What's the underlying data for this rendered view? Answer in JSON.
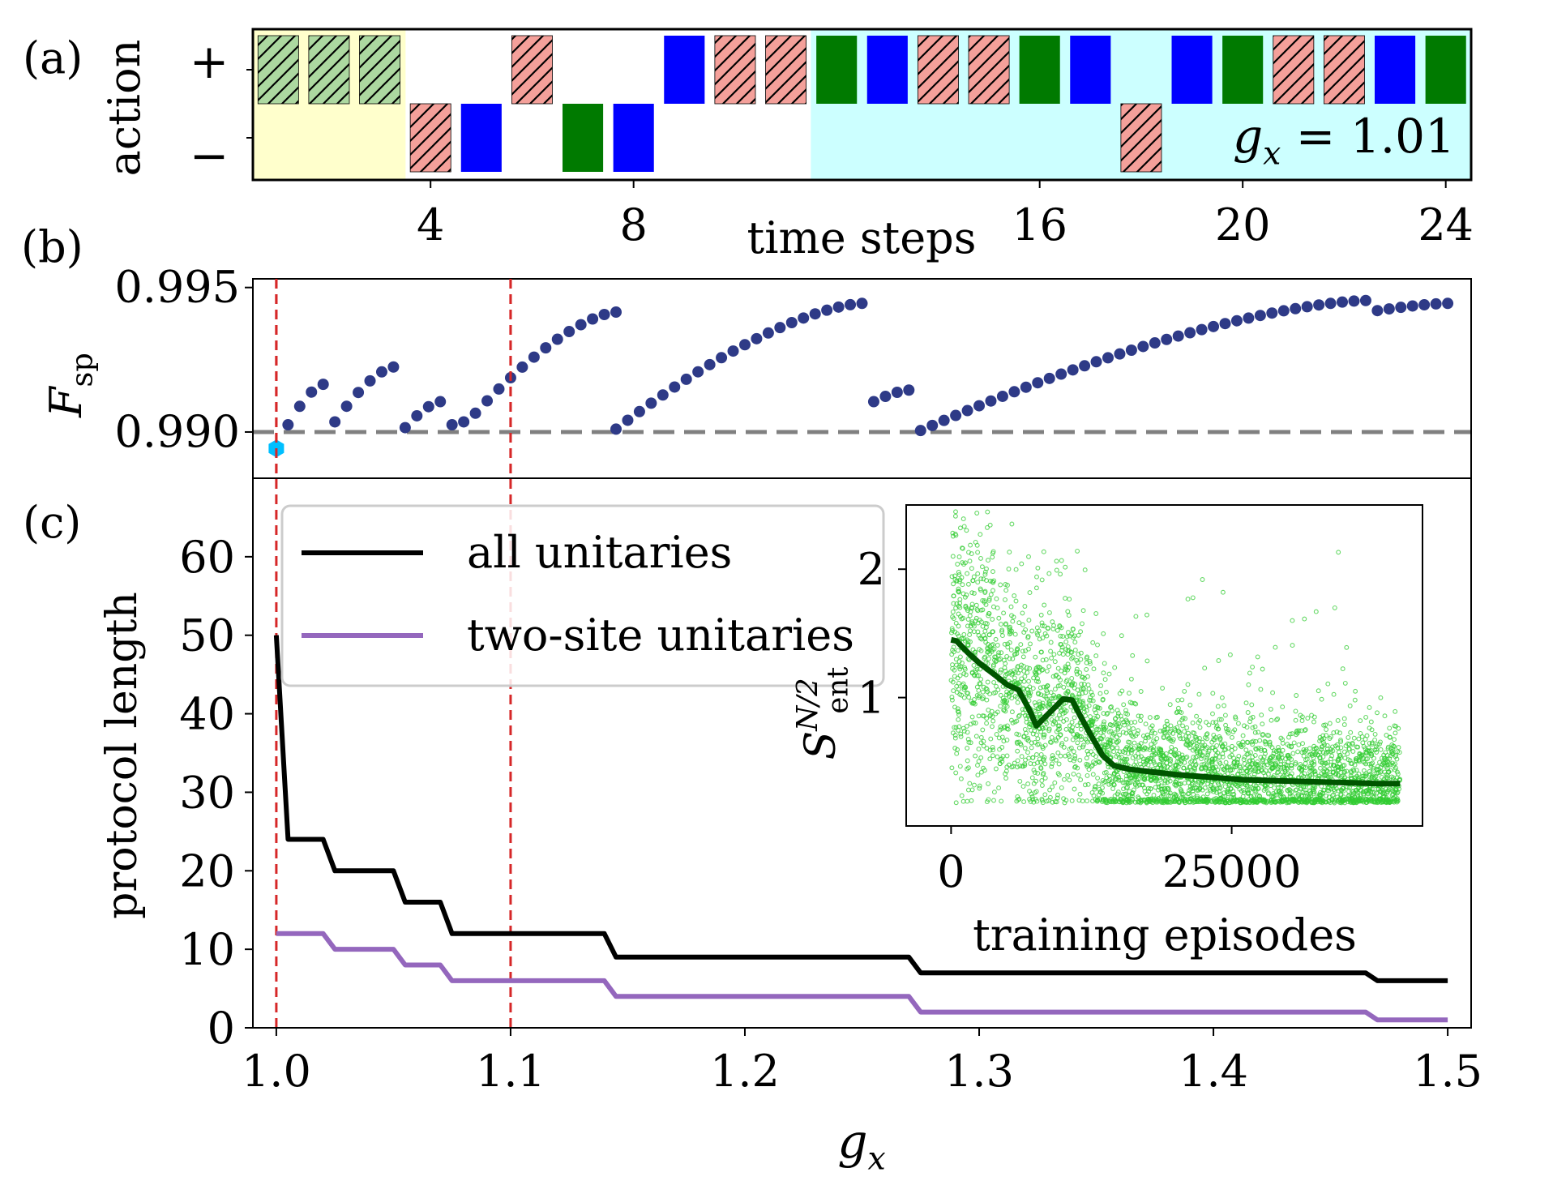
{
  "chart_data": [
    {
      "panel_label": "(a)",
      "type": "timeline",
      "ylabel": "action",
      "y_levels": [
        "+",
        "−"
      ],
      "xlabel": "time steps",
      "xticks": [
        4,
        8,
        16,
        20,
        24
      ],
      "annotation": {
        "symbol": "g",
        "subscript": "x",
        "text": " = 1.01"
      },
      "colors": {
        "green": "#007a00",
        "blue": "#0000ff",
        "red": "#f4a09a",
        "hatched_green": "#acd8a0",
        "region_yellow": "#ffffcc",
        "region_cyan": "#ccffff"
      },
      "regions": [
        {
          "color": "region_yellow",
          "start": 0.5,
          "end": 3.5
        },
        {
          "color": "region_cyan",
          "start": 11.5,
          "end": 24.5
        }
      ],
      "steps": [
        {
          "t": 1,
          "action": "+",
          "kind": "hatched_green"
        },
        {
          "t": 2,
          "action": "+",
          "kind": "hatched_green"
        },
        {
          "t": 3,
          "action": "+",
          "kind": "hatched_green"
        },
        {
          "t": 4,
          "action": "-",
          "kind": "hatched_red"
        },
        {
          "t": 5,
          "action": "-",
          "kind": "blue"
        },
        {
          "t": 6,
          "action": "+",
          "kind": "hatched_red"
        },
        {
          "t": 7,
          "action": "-",
          "kind": "green"
        },
        {
          "t": 8,
          "action": "-",
          "kind": "blue"
        },
        {
          "t": 9,
          "action": "+",
          "kind": "blue"
        },
        {
          "t": 10,
          "action": "+",
          "kind": "hatched_red"
        },
        {
          "t": 11,
          "action": "+",
          "kind": "hatched_red"
        },
        {
          "t": 12,
          "action": "+",
          "kind": "green"
        },
        {
          "t": 13,
          "action": "+",
          "kind": "blue"
        },
        {
          "t": 14,
          "action": "+",
          "kind": "hatched_red"
        },
        {
          "t": 15,
          "action": "+",
          "kind": "hatched_red"
        },
        {
          "t": 16,
          "action": "+",
          "kind": "green"
        },
        {
          "t": 17,
          "action": "+",
          "kind": "blue"
        },
        {
          "t": 18,
          "action": "-",
          "kind": "hatched_red"
        },
        {
          "t": 19,
          "action": "+",
          "kind": "blue"
        },
        {
          "t": 20,
          "action": "+",
          "kind": "green"
        },
        {
          "t": 21,
          "action": "+",
          "kind": "hatched_red"
        },
        {
          "t": 22,
          "action": "+",
          "kind": "hatched_red"
        },
        {
          "t": 23,
          "action": "+",
          "kind": "blue"
        },
        {
          "t": 24,
          "action": "+",
          "kind": "green"
        }
      ]
    },
    {
      "panel_label": "(b)",
      "type": "scatter",
      "ylabel": {
        "symbol": "F",
        "subscript": "sp"
      },
      "ylim": [
        0.9884,
        0.9953
      ],
      "yticks": [
        0.99,
        0.995
      ],
      "ytick_labels": [
        "0.990",
        "0.995"
      ],
      "threshold": 0.99,
      "vlines": [
        1.0,
        1.1
      ],
      "colors": {
        "points": "#2e3a87",
        "highlight": "#00bfff",
        "threshold": "#808080",
        "vline": "#d62728"
      },
      "highlight_point": {
        "x": 1.0,
        "y": 0.98943
      },
      "segments": [
        {
          "x_start": 1.005,
          "x_end": 1.02,
          "y_start": 0.99025,
          "y_end": 0.99165
        },
        {
          "x_start": 1.025,
          "x_end": 1.05,
          "y_start": 0.99035,
          "y_end": 0.99225
        },
        {
          "x_start": 1.055,
          "x_end": 1.07,
          "y_start": 0.99015,
          "y_end": 0.99105
        },
        {
          "x_start": 1.075,
          "x_end": 1.08,
          "y_start": 0.99025,
          "y_end": 0.99035
        },
        {
          "x_start": 1.085,
          "x_end": 1.145,
          "y_start": 0.99065,
          "y_end": 0.99415
        },
        {
          "x_start": 1.145,
          "x_end": 1.25,
          "y_start": 0.9901,
          "y_end": 0.99445
        },
        {
          "x_start": 1.255,
          "x_end": 1.27,
          "y_start": 0.99105,
          "y_end": 0.99145
        },
        {
          "x_start": 1.275,
          "x_end": 1.465,
          "y_start": 0.99005,
          "y_end": 0.99455
        },
        {
          "x_start": 1.47,
          "x_end": 1.5,
          "y_start": 0.9942,
          "y_end": 0.99445
        }
      ]
    },
    {
      "panel_label": "(c)",
      "type": "line",
      "xlabel": {
        "symbol": "g",
        "subscript": "x"
      },
      "ylabel": "protocol length",
      "xlim": [
        0.99,
        1.51
      ],
      "ylim": [
        0,
        70
      ],
      "xticks": [
        1.0,
        1.1,
        1.2,
        1.3,
        1.4,
        1.5
      ],
      "xtick_labels": [
        "1.0",
        "1.1",
        "1.2",
        "1.3",
        "1.4",
        "1.5"
      ],
      "yticks": [
        0,
        10,
        20,
        30,
        40,
        50,
        60
      ],
      "ytick_labels": [
        "0",
        "10",
        "20",
        "30",
        "40",
        "50",
        "60"
      ],
      "vlines": [
        1.0,
        1.1
      ],
      "legend": {
        "placement": "upper-left"
      },
      "series": [
        {
          "name": "all unitaries",
          "color": "#000000",
          "points": [
            [
              1.0,
              50
            ],
            [
              1.005,
              24
            ],
            [
              1.02,
              24
            ],
            [
              1.025,
              20
            ],
            [
              1.05,
              20
            ],
            [
              1.055,
              16
            ],
            [
              1.07,
              16
            ],
            [
              1.075,
              12
            ],
            [
              1.14,
              12
            ],
            [
              1.145,
              9
            ],
            [
              1.27,
              9
            ],
            [
              1.275,
              7
            ],
            [
              1.465,
              7
            ],
            [
              1.47,
              6
            ],
            [
              1.5,
              6
            ]
          ]
        },
        {
          "name": "two-site unitaries",
          "color": "#9467bd",
          "points": [
            [
              1.0,
              12
            ],
            [
              1.02,
              12
            ],
            [
              1.025,
              10
            ],
            [
              1.05,
              10
            ],
            [
              1.055,
              8
            ],
            [
              1.07,
              8
            ],
            [
              1.075,
              6
            ],
            [
              1.14,
              6
            ],
            [
              1.145,
              4
            ],
            [
              1.27,
              4
            ],
            [
              1.275,
              2
            ],
            [
              1.465,
              2
            ],
            [
              1.47,
              1
            ],
            [
              1.5,
              1
            ]
          ]
        }
      ]
    },
    {
      "panel_label": "inset",
      "type": "scatter",
      "xlabel": "training episodes",
      "ylabel": {
        "symbol": "S",
        "subscript": "ent",
        "superscript": "N/2"
      },
      "xlim": [
        -4000,
        42000
      ],
      "ylim": [
        0.0,
        2.5
      ],
      "xticks": [
        0,
        25000
      ],
      "xtick_labels": [
        "0",
        "25000"
      ],
      "yticks": [
        1,
        2
      ],
      "ytick_labels": [
        "1",
        "2"
      ],
      "colors": {
        "scatter": "#33cc33",
        "mean": "#005500"
      },
      "scatter_floor": 0.18,
      "mean_curve": [
        [
          0,
          1.45
        ],
        [
          500,
          1.44
        ],
        [
          1500,
          1.35
        ],
        [
          2500,
          1.27
        ],
        [
          4000,
          1.17
        ],
        [
          5000,
          1.1
        ],
        [
          6000,
          1.06
        ],
        [
          7000,
          0.9
        ],
        [
          7600,
          0.78
        ],
        [
          8400,
          0.85
        ],
        [
          9200,
          0.92
        ],
        [
          10000,
          0.99
        ],
        [
          10800,
          0.98
        ],
        [
          11500,
          0.86
        ],
        [
          12500,
          0.7
        ],
        [
          13500,
          0.55
        ],
        [
          14500,
          0.47
        ],
        [
          16000,
          0.44
        ],
        [
          18000,
          0.42
        ],
        [
          20000,
          0.4
        ],
        [
          23000,
          0.38
        ],
        [
          26000,
          0.36
        ],
        [
          30000,
          0.35
        ],
        [
          34000,
          0.34
        ],
        [
          38000,
          0.33
        ],
        [
          40000,
          0.33
        ]
      ],
      "spread_curve": [
        [
          0,
          0.55
        ],
        [
          6000,
          0.45
        ],
        [
          10000,
          0.4
        ],
        [
          13000,
          0.3
        ],
        [
          16000,
          0.25
        ],
        [
          25000,
          0.22
        ],
        [
          40000,
          0.2
        ]
      ]
    }
  ]
}
